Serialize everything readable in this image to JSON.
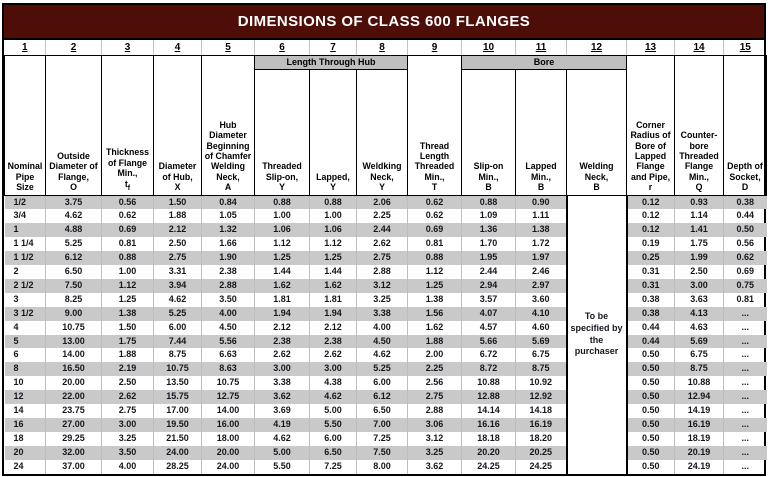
{
  "title": "DIMENSIONS OF CLASS 600 FLANGES",
  "colors": {
    "title_bg": "#4f0d08",
    "title_text": "#ffffff",
    "stripe_gray": "#c9c9c9",
    "group_bar_gray": "#bfbfbf",
    "border_black": "#000000"
  },
  "col_numbers": [
    "1",
    "2",
    "3",
    "4",
    "5",
    "6",
    "7",
    "8",
    "9",
    "10",
    "11",
    "12",
    "13",
    "14",
    "15"
  ],
  "groups": {
    "length_through_hub": "Length Through Hub",
    "bore": "Bore"
  },
  "headers": {
    "c1": {
      "text": "Nominal Pipe Size"
    },
    "c2": {
      "text": "Outside Diameter of Flange,",
      "sym": "O"
    },
    "c3": {
      "text": "Thickness of Flange Min.,",
      "sym": "t",
      "sym_sub": "f"
    },
    "c4": {
      "text": "Diameter of Hub,",
      "sym": "X"
    },
    "c5": {
      "text": "Hub Diameter Beginning of Chamfer Welding Neck,",
      "sym": "A"
    },
    "c6": {
      "text": "Threaded Slip-on,",
      "sym": "Y"
    },
    "c7": {
      "text": "Lapped,",
      "sym": "Y"
    },
    "c8": {
      "text": "Weldking Neck,",
      "sym": "Y"
    },
    "c9": {
      "text": "Thread Length Threaded Min.,",
      "sym": "T"
    },
    "c10": {
      "text": "Slip-on Min.,",
      "sym": "B"
    },
    "c11": {
      "text": "Lapped Min.,",
      "sym": "B"
    },
    "c12": {
      "text": "Welding Neck,",
      "sym": "B"
    },
    "c13": {
      "text": "Corner Radius of Bore of Lapped Flange and Pipe,",
      "sym": "r"
    },
    "c14": {
      "text": "Counter-bore Threaded Flange Min.,",
      "sym": "Q"
    },
    "c15": {
      "text": "Depth of Socket,",
      "sym": "D"
    }
  },
  "merged_note": "To be specified by the purchaser",
  "rows": [
    [
      "1/2",
      "3.75",
      "0.56",
      "1.50",
      "0.84",
      "0.88",
      "0.88",
      "2.06",
      "0.62",
      "0.88",
      "0.90",
      "0.12",
      "0.93",
      "0.38"
    ],
    [
      "3/4",
      "4.62",
      "0.62",
      "1.88",
      "1.05",
      "1.00",
      "1.00",
      "2.25",
      "0.62",
      "1.09",
      "1.11",
      "0.12",
      "1.14",
      "0.44"
    ],
    [
      "1",
      "4.88",
      "0.69",
      "2.12",
      "1.32",
      "1.06",
      "1.06",
      "2.44",
      "0.69",
      "1.36",
      "1.38",
      "0.12",
      "1.41",
      "0.50"
    ],
    [
      "1 1/4",
      "5.25",
      "0.81",
      "2.50",
      "1.66",
      "1.12",
      "1.12",
      "2.62",
      "0.81",
      "1.70",
      "1.72",
      "0.19",
      "1.75",
      "0.56"
    ],
    [
      "1 1/2",
      "6.12",
      "0.88",
      "2.75",
      "1.90",
      "1.25",
      "1.25",
      "2.75",
      "0.88",
      "1.95",
      "1.97",
      "0.25",
      "1.99",
      "0.62"
    ],
    [
      "2",
      "6.50",
      "1.00",
      "3.31",
      "2.38",
      "1.44",
      "1.44",
      "2.88",
      "1.12",
      "2.44",
      "2.46",
      "0.31",
      "2.50",
      "0.69"
    ],
    [
      "2 1/2",
      "7.50",
      "1.12",
      "3.94",
      "2.88",
      "1.62",
      "1.62",
      "3.12",
      "1.25",
      "2.94",
      "2.97",
      "0.31",
      "3.00",
      "0.75"
    ],
    [
      "3",
      "8.25",
      "1.25",
      "4.62",
      "3.50",
      "1.81",
      "1.81",
      "3.25",
      "1.38",
      "3.57",
      "3.60",
      "0.38",
      "3.63",
      "0.81"
    ],
    [
      "3 1/2",
      "9.00",
      "1.38",
      "5.25",
      "4.00",
      "1.94",
      "1.94",
      "3.38",
      "1.56",
      "4.07",
      "4.10",
      "0.38",
      "4.13",
      "..."
    ],
    [
      "4",
      "10.75",
      "1.50",
      "6.00",
      "4.50",
      "2.12",
      "2.12",
      "4.00",
      "1.62",
      "4.57",
      "4.60",
      "0.44",
      "4.63",
      "..."
    ],
    [
      "5",
      "13.00",
      "1.75",
      "7.44",
      "5.56",
      "2.38",
      "2.38",
      "4.50",
      "1.88",
      "5.66",
      "5.69",
      "0.44",
      "5.69",
      "..."
    ],
    [
      "6",
      "14.00",
      "1.88",
      "8.75",
      "6.63",
      "2.62",
      "2.62",
      "4.62",
      "2.00",
      "6.72",
      "6.75",
      "0.50",
      "6.75",
      "..."
    ],
    [
      "8",
      "16.50",
      "2.19",
      "10.75",
      "8.63",
      "3.00",
      "3.00",
      "5.25",
      "2.25",
      "8.72",
      "8.75",
      "0.50",
      "8.75",
      "..."
    ],
    [
      "10",
      "20.00",
      "2.50",
      "13.50",
      "10.75",
      "3.38",
      "4.38",
      "6.00",
      "2.56",
      "10.88",
      "10.92",
      "0.50",
      "10.88",
      "..."
    ],
    [
      "12",
      "22.00",
      "2.62",
      "15.75",
      "12.75",
      "3.62",
      "4.62",
      "6.12",
      "2.75",
      "12.88",
      "12.92",
      "0.50",
      "12.94",
      "..."
    ],
    [
      "14",
      "23.75",
      "2.75",
      "17.00",
      "14.00",
      "3.69",
      "5.00",
      "6.50",
      "2.88",
      "14.14",
      "14.18",
      "0.50",
      "14.19",
      "..."
    ],
    [
      "16",
      "27.00",
      "3.00",
      "19.50",
      "16.00",
      "4.19",
      "5.50",
      "7.00",
      "3.06",
      "16.16",
      "16.19",
      "0.50",
      "16.19",
      "..."
    ],
    [
      "18",
      "29.25",
      "3.25",
      "21.50",
      "18.00",
      "4.62",
      "6.00",
      "7.25",
      "3.12",
      "18.18",
      "18.20",
      "0.50",
      "18.19",
      "..."
    ],
    [
      "20",
      "32.00",
      "3.50",
      "24.00",
      "20.00",
      "5.00",
      "6.50",
      "7.50",
      "3.25",
      "20.20",
      "20.25",
      "0.50",
      "20.19",
      "..."
    ],
    [
      "24",
      "37.00",
      "4.00",
      "28.25",
      "24.00",
      "5.50",
      "7.25",
      "8.00",
      "3.62",
      "24.25",
      "24.25",
      "0.50",
      "24.19",
      "..."
    ]
  ]
}
